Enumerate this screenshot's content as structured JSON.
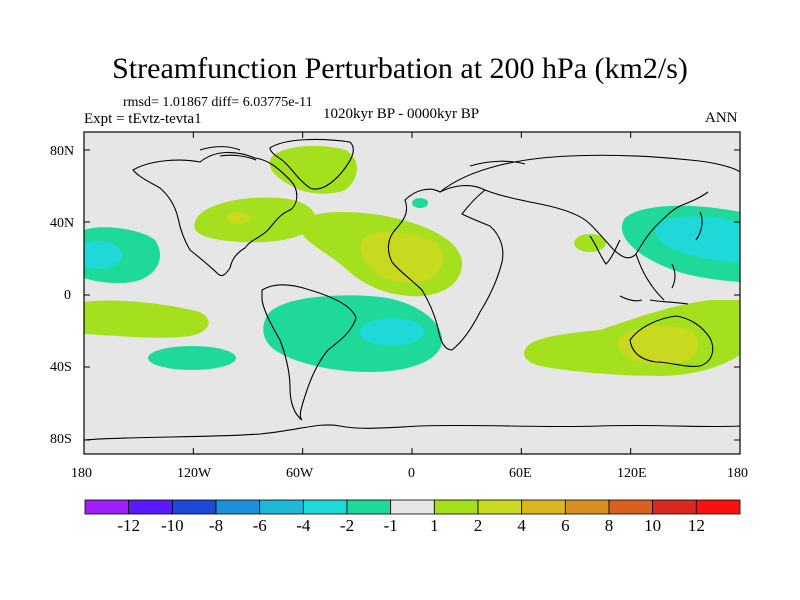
{
  "title": "Streamfunction Perturbation at 200 hPa (km2/s)",
  "stats_line": "rmsd= 1.01867 diff= 6.03775e-11",
  "experiment": "Expt = tEvtz-tevta1",
  "period": "1020kyr BP - 0000kyr BP",
  "season": "ANN",
  "lat_ticks": [
    "80N",
    "40N",
    "0",
    "40S",
    "80S"
  ],
  "lon_ticks": [
    "180",
    "120W",
    "60W",
    "0",
    "60E",
    "120E",
    "180"
  ],
  "colorbar": {
    "labels": [
      "-12",
      "-10",
      "-8",
      "-6",
      "-4",
      "-2",
      "-1",
      "1",
      "2",
      "4",
      "6",
      "8",
      "10",
      "12"
    ],
    "colors": [
      "#9f1fff",
      "#5a19ff",
      "#1f49d9",
      "#1f8fd9",
      "#1fb8d9",
      "#1fd9d9",
      "#1fd99a",
      "#e6e6e6",
      "#a5e01f",
      "#c8d91f",
      "#d9b71f",
      "#d98f1f",
      "#d9601f",
      "#d92a1f",
      "#ff1010"
    ]
  },
  "colors": {
    "ocean_bg": "#e6e6e6",
    "coast": "#000000"
  }
}
